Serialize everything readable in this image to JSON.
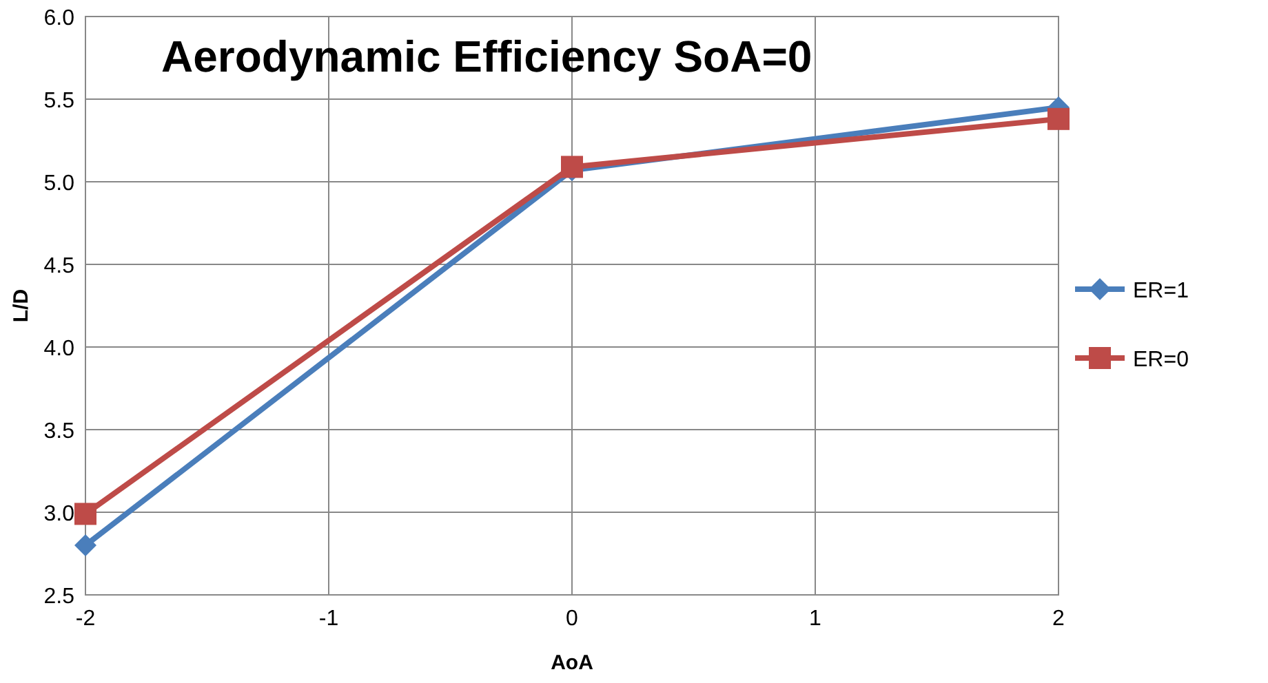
{
  "chart_data": {
    "type": "line",
    "title": "Aerodynamic Efficiency SoA=0",
    "xlabel": "AoA",
    "ylabel": "L/D",
    "x": [
      -2,
      0,
      2
    ],
    "xlim": [
      -2,
      2
    ],
    "xticks": [
      -2,
      -1,
      0,
      1,
      2
    ],
    "ylim": [
      2.5,
      6.0
    ],
    "yticks": [
      {
        "value": 2.5,
        "label": "2.5"
      },
      {
        "value": 3,
        "label": "3.0"
      },
      {
        "value": 3.5,
        "label": "3.5"
      },
      {
        "value": 4,
        "label": "4.0"
      },
      {
        "value": 4.5,
        "label": "4.5"
      },
      {
        "value": 5,
        "label": "5.0"
      },
      {
        "value": 5.5,
        "label": "5.5"
      },
      {
        "value": 6,
        "label": "6.0"
      }
    ],
    "grid": true,
    "legend": "right",
    "series": [
      {
        "name": "ER=1",
        "color": "#4a7ebb",
        "marker": "diamond",
        "values": [
          2.8,
          5.07,
          5.45
        ]
      },
      {
        "name": "ER=0",
        "color": "#be4b48",
        "marker": "square",
        "values": [
          2.99,
          5.09,
          5.38
        ]
      }
    ]
  }
}
